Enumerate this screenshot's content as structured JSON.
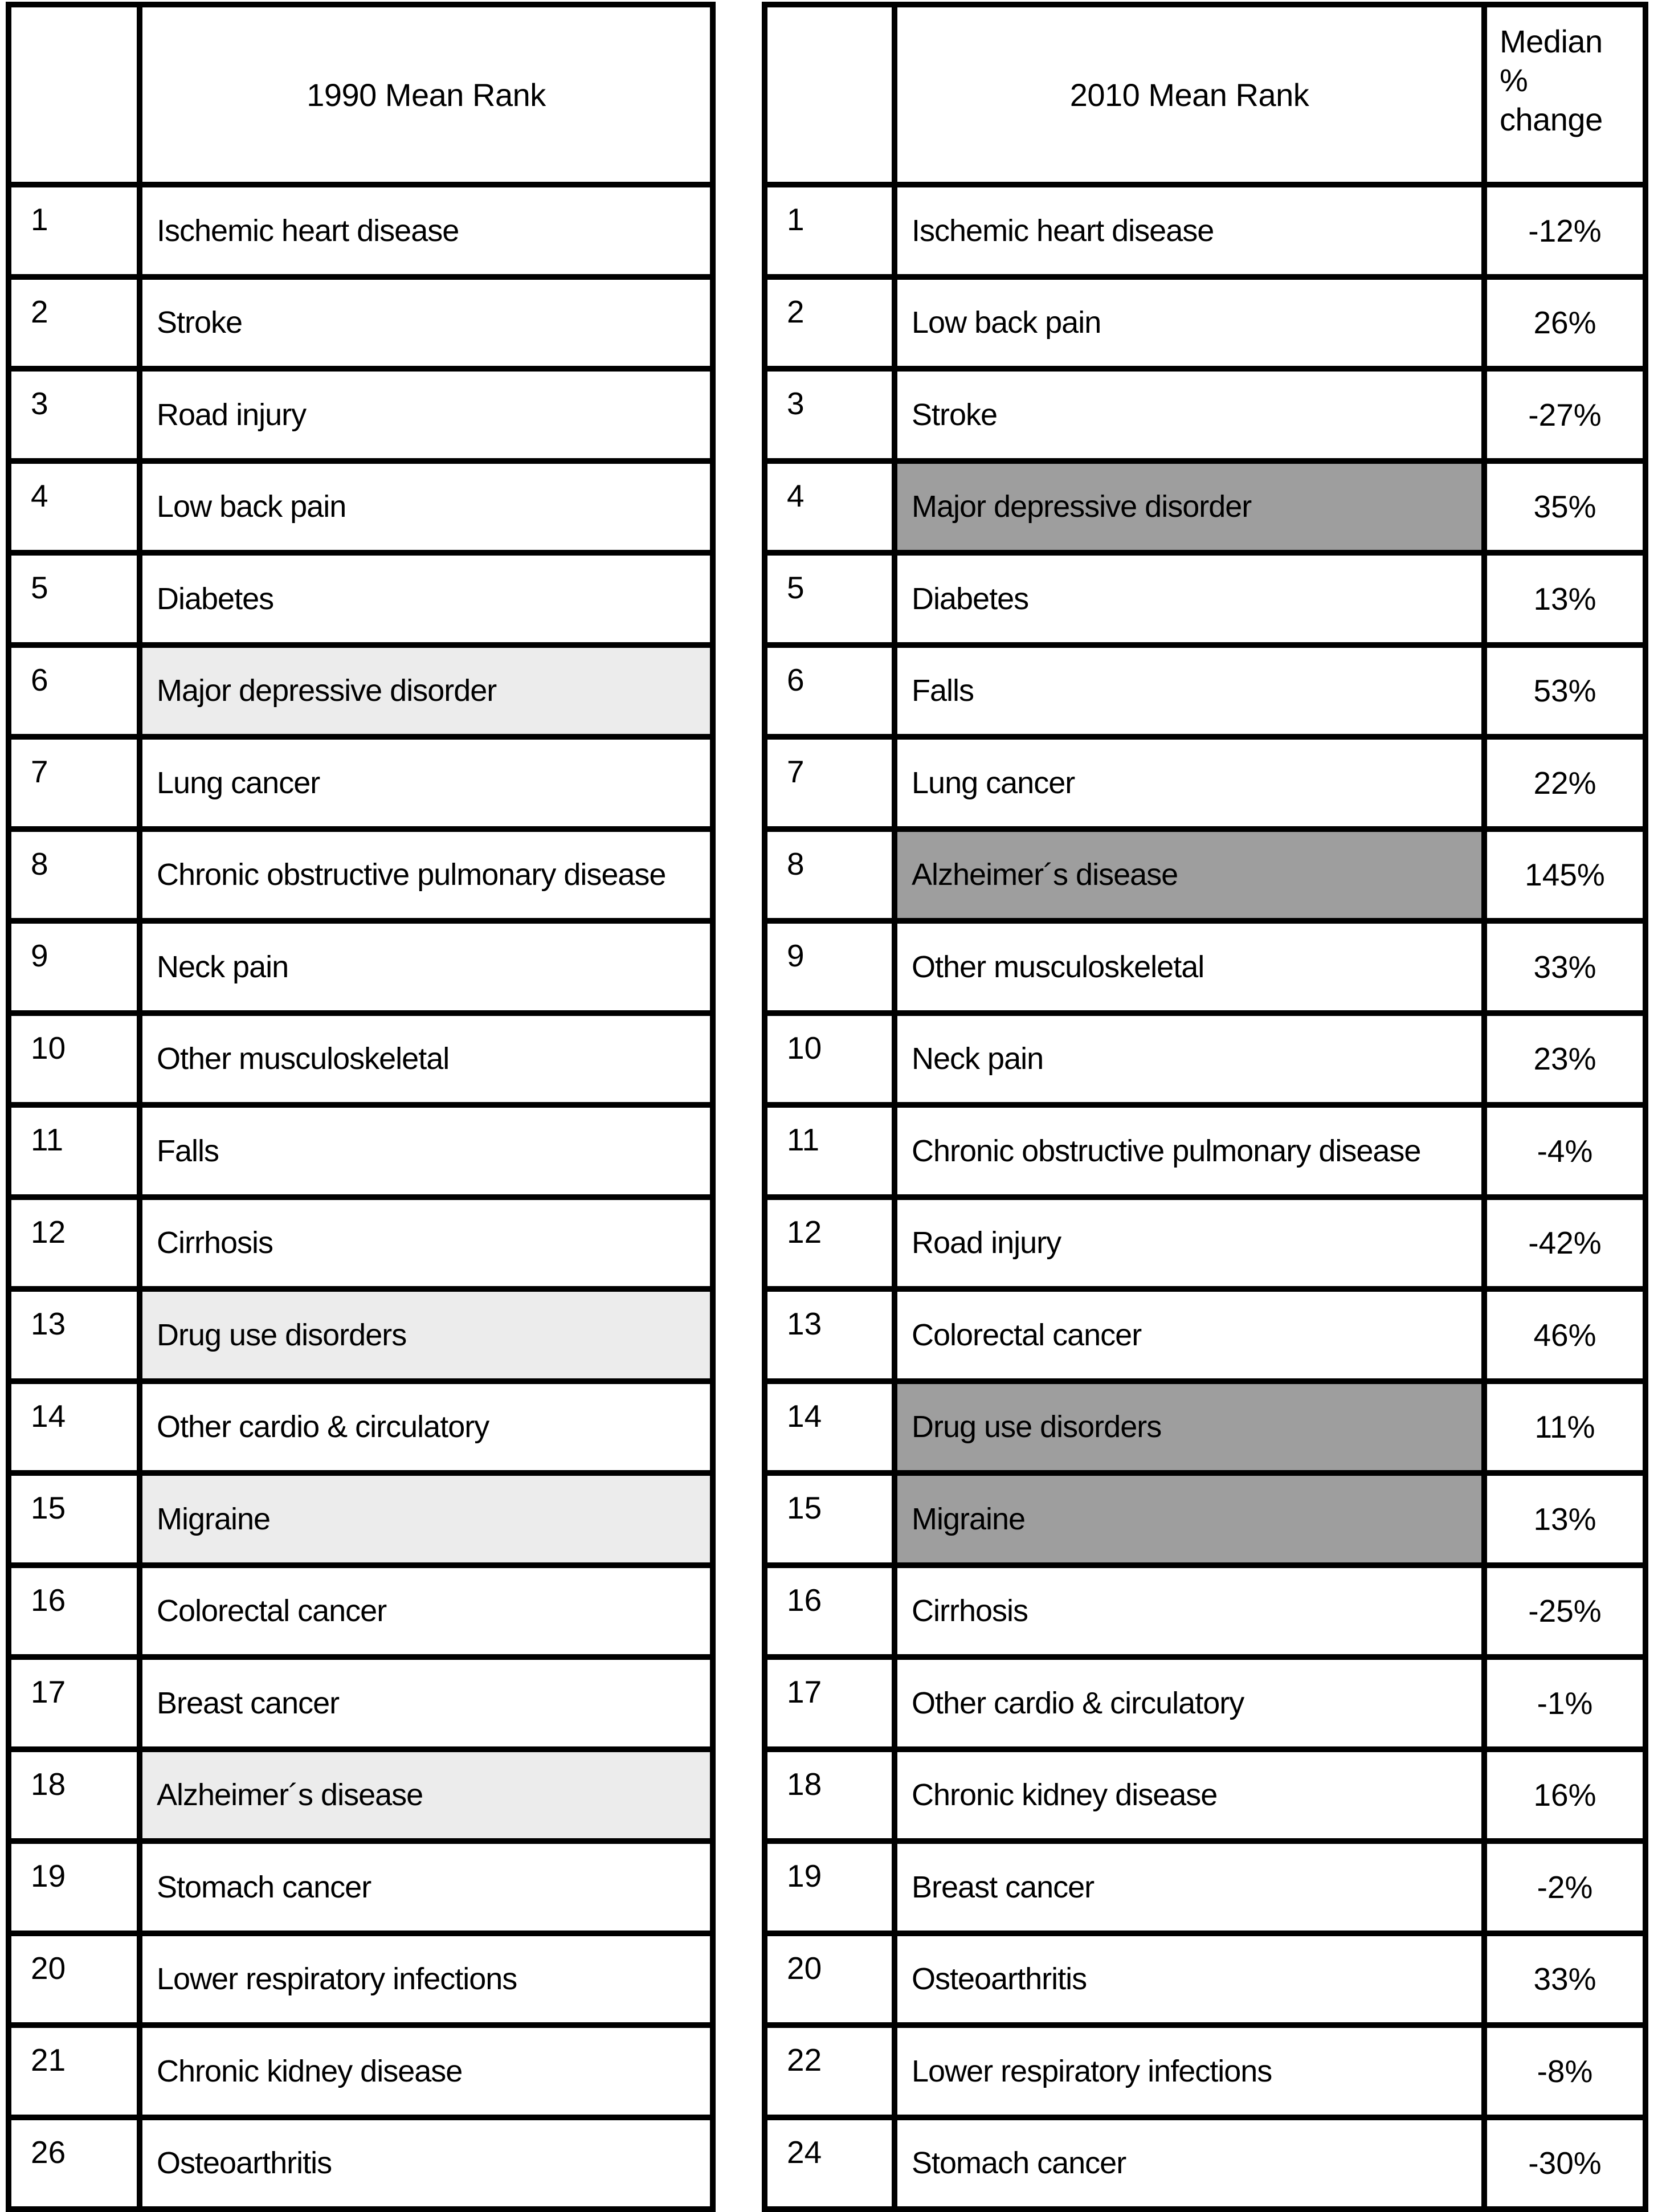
{
  "chart_data": [
    {
      "type": "table",
      "title": "1990 Mean Rank",
      "columns": [
        "rank",
        "cause"
      ],
      "highlight_note": "gray-shaded causes",
      "rows": [
        {
          "rank": "1",
          "cause": "Ischemic heart disease",
          "highlight": false
        },
        {
          "rank": "2",
          "cause": "Stroke",
          "highlight": false
        },
        {
          "rank": "3",
          "cause": "Road injury",
          "highlight": false
        },
        {
          "rank": "4",
          "cause": "Low back pain",
          "highlight": false
        },
        {
          "rank": "5",
          "cause": "Diabetes",
          "highlight": false
        },
        {
          "rank": "6",
          "cause": "Major depressive disorder",
          "highlight": true
        },
        {
          "rank": "7",
          "cause": "Lung cancer",
          "highlight": false
        },
        {
          "rank": "8",
          "cause": "Chronic obstructive pulmonary disease",
          "highlight": false
        },
        {
          "rank": "9",
          "cause": "Neck pain",
          "highlight": false
        },
        {
          "rank": "10",
          "cause": "Other musculoskeletal",
          "highlight": false
        },
        {
          "rank": "11",
          "cause": "Falls",
          "highlight": false
        },
        {
          "rank": "12",
          "cause": "Cirrhosis",
          "highlight": false
        },
        {
          "rank": "13",
          "cause": "Drug use disorders",
          "highlight": true
        },
        {
          "rank": "14",
          "cause": "Other cardio & circulatory",
          "highlight": false
        },
        {
          "rank": "15",
          "cause": "Migraine",
          "highlight": true
        },
        {
          "rank": "16",
          "cause": "Colorectal cancer",
          "highlight": false
        },
        {
          "rank": "17",
          "cause": "Breast cancer",
          "highlight": false
        },
        {
          "rank": "18",
          "cause": "Alzheimer´s disease",
          "highlight": true
        },
        {
          "rank": "19",
          "cause": "Stomach cancer",
          "highlight": false
        },
        {
          "rank": "20",
          "cause": "Lower respiratory infections",
          "highlight": false
        },
        {
          "rank": "21",
          "cause": "Chronic kidney disease",
          "highlight": false
        },
        {
          "rank": "26",
          "cause": "Osteoarthritis",
          "highlight": false
        }
      ]
    },
    {
      "type": "table",
      "title": "2010 Mean Rank",
      "change_header": "Median %\nchange",
      "columns": [
        "rank",
        "cause",
        "median_pct_change"
      ],
      "highlight_note": "gray-shaded causes",
      "rows": [
        {
          "rank": "1",
          "cause": "Ischemic heart disease",
          "change": "-12%",
          "highlight": false
        },
        {
          "rank": "2",
          "cause": "Low back pain",
          "change": "26%",
          "highlight": false
        },
        {
          "rank": "3",
          "cause": "Stroke",
          "change": "-27%",
          "highlight": false
        },
        {
          "rank": "4",
          "cause": "Major depressive disorder",
          "change": "35%",
          "highlight": true
        },
        {
          "rank": "5",
          "cause": "Diabetes",
          "change": "13%",
          "highlight": false
        },
        {
          "rank": "6",
          "cause": "Falls",
          "change": "53%",
          "highlight": false
        },
        {
          "rank": "7",
          "cause": "Lung cancer",
          "change": "22%",
          "highlight": false
        },
        {
          "rank": "8",
          "cause": "Alzheimer´s disease",
          "change": "145%",
          "highlight": true
        },
        {
          "rank": "9",
          "cause": "Other musculoskeletal",
          "change": "33%",
          "highlight": false
        },
        {
          "rank": "10",
          "cause": "Neck pain",
          "change": "23%",
          "highlight": false
        },
        {
          "rank": "11",
          "cause": "Chronic obstructive pulmonary disease",
          "change": "-4%",
          "highlight": false
        },
        {
          "rank": "12",
          "cause": "Road injury",
          "change": "-42%",
          "highlight": false
        },
        {
          "rank": "13",
          "cause": "Colorectal cancer",
          "change": "46%",
          "highlight": false
        },
        {
          "rank": "14",
          "cause": "Drug use disorders",
          "change": "11%",
          "highlight": true
        },
        {
          "rank": "15",
          "cause": "Migraine",
          "change": "13%",
          "highlight": true
        },
        {
          "rank": "16",
          "cause": "Cirrhosis",
          "change": "-25%",
          "highlight": false
        },
        {
          "rank": "17",
          "cause": "Other cardio & circulatory",
          "change": "-1%",
          "highlight": false
        },
        {
          "rank": "18",
          "cause": "Chronic kidney disease",
          "change": "16%",
          "highlight": false
        },
        {
          "rank": "19",
          "cause": "Breast cancer",
          "change": "-2%",
          "highlight": false
        },
        {
          "rank": "20",
          "cause": "Osteoarthritis",
          "change": "33%",
          "highlight": false
        },
        {
          "rank": "22",
          "cause": "Lower respiratory infections",
          "change": "-8%",
          "highlight": false
        },
        {
          "rank": "24",
          "cause": "Stomach cancer",
          "change": "-30%",
          "highlight": false
        }
      ]
    }
  ],
  "colors": {
    "highlight_light": "#ececec",
    "highlight_dark": "#9e9e9e",
    "border": "#000000",
    "background": "#ffffff"
  }
}
